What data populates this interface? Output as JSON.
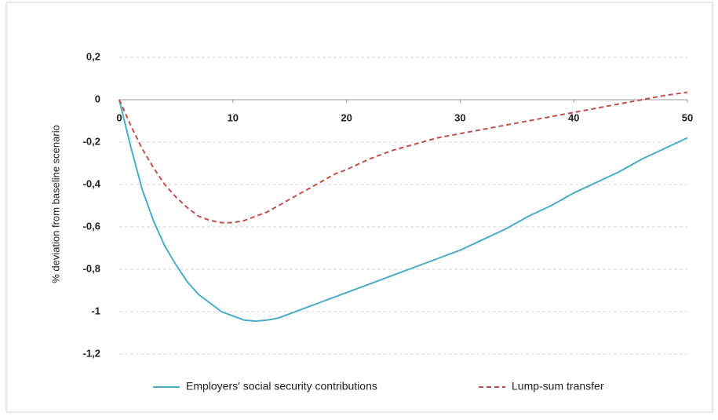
{
  "chart_data": {
    "type": "line",
    "y_label": "% deviation from baseline scenario",
    "x": [
      0,
      1,
      2,
      3,
      4,
      5,
      6,
      7,
      8,
      9,
      10,
      11,
      12,
      13,
      14,
      15,
      16,
      17,
      18,
      19,
      20,
      22,
      24,
      26,
      28,
      30,
      32,
      34,
      36,
      38,
      40,
      42,
      44,
      46,
      48,
      50
    ],
    "series": [
      {
        "name": "Employers' social security contributions",
        "color": "#4bacc6",
        "dash": false,
        "values": [
          0,
          -0.22,
          -0.42,
          -0.57,
          -0.69,
          -0.78,
          -0.86,
          -0.92,
          -0.96,
          -1.0,
          -1.02,
          -1.04,
          -1.045,
          -1.04,
          -1.03,
          -1.01,
          -0.99,
          -0.97,
          -0.95,
          -0.93,
          -0.91,
          -0.87,
          -0.83,
          -0.79,
          -0.75,
          -0.71,
          -0.66,
          -0.61,
          -0.55,
          -0.5,
          -0.44,
          -0.39,
          -0.34,
          -0.28,
          -0.23,
          -0.18
        ]
      },
      {
        "name": "Lump-sum transfer",
        "color": "#c0504d",
        "dash": true,
        "values": [
          0,
          -0.12,
          -0.23,
          -0.32,
          -0.4,
          -0.46,
          -0.51,
          -0.55,
          -0.57,
          -0.58,
          -0.58,
          -0.57,
          -0.55,
          -0.53,
          -0.5,
          -0.47,
          -0.44,
          -0.41,
          -0.38,
          -0.35,
          -0.33,
          -0.28,
          -0.24,
          -0.21,
          -0.18,
          -0.16,
          -0.14,
          -0.12,
          -0.1,
          -0.08,
          -0.06,
          -0.04,
          -0.02,
          0.0,
          0.02,
          0.035
        ]
      }
    ],
    "xlim": [
      0,
      50
    ],
    "xticks": [
      0,
      10,
      20,
      30,
      40,
      50
    ],
    "ylim": [
      -1.3,
      0.3
    ],
    "yticks": [
      {
        "value": 0.2,
        "label": "0,2"
      },
      0,
      {
        "value": -0.2,
        "label": "-0,2"
      },
      {
        "value": -0.4,
        "label": "-0,4"
      },
      {
        "value": -0.6,
        "label": "-0,6"
      },
      {
        "value": -0.8,
        "label": "-0,8"
      },
      -1,
      {
        "value": -1.2,
        "label": "-1,2"
      }
    ],
    "grid": true,
    "legend": "bottom"
  }
}
